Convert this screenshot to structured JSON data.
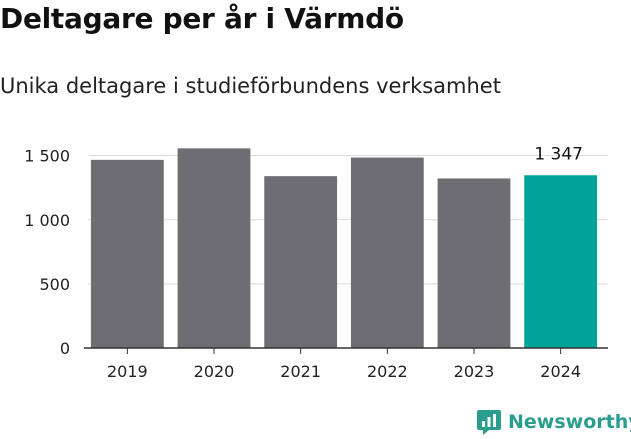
{
  "header": {
    "title": "Deltagare per år i Värmdö",
    "subtitle": "Unika deltagare i studieförbundens verksamhet"
  },
  "chart_data": {
    "type": "bar",
    "title": "Deltagare per år i Värmdö",
    "subtitle": "Unika deltagare i studieförbundens verksamhet",
    "xlabel": "",
    "ylabel": "",
    "categories": [
      "2019",
      "2020",
      "2021",
      "2022",
      "2023",
      "2024"
    ],
    "values": [
      1467,
      1557,
      1340,
      1485,
      1322,
      1347
    ],
    "ylim": [
      0,
      1700
    ],
    "yticks": [
      0,
      500,
      1000,
      1500
    ],
    "ytick_labels": [
      "0",
      "500",
      "1 000",
      "1 500"
    ],
    "grid": true,
    "annotations": [
      {
        "category": "2024",
        "text": "1 347"
      }
    ],
    "colors": {
      "default": "#6e6d72",
      "highlight": "#00a398",
      "grid": "#d9d9d9",
      "axis": "#333333"
    },
    "highlight_index": 5
  },
  "brand": {
    "name": "Newsworthy",
    "color": "#2a9d8f",
    "icon": "newsworthy-logo-icon"
  }
}
